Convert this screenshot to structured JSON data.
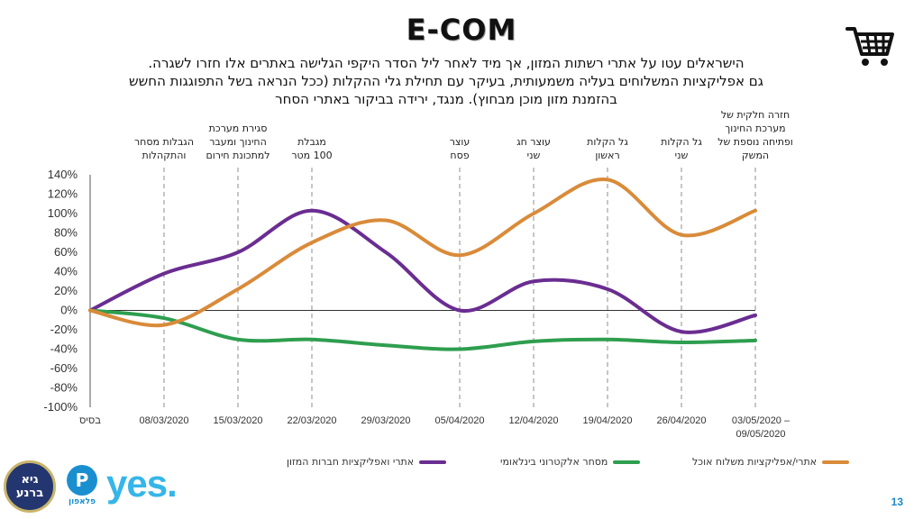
{
  "title": "E-COM",
  "subtitle": [
    "הישראלים עטו על אתרי רשתות המזון, אך מיד לאחר ליל הסדר היקפי הגלישה באתרים אלו חזרו לשגרה.",
    "גם אפליקציות המשלוחים בעליה משמעותית, בעיקר עם תחילת גלי ההקלות (ככל הנראה בשל התפוגגות החשש",
    "בהזמנת מזון מוכן מבחוץ). מנגד, ירידה בביקור באתרי הסחר"
  ],
  "page_number": "13",
  "icons": {
    "cart": "shopping-cart-icon"
  },
  "logos": {
    "logo1_text": "גיא ברנע",
    "logo2_mark": "P",
    "logo2_text": "פלאפון",
    "logo3_text": "yes."
  },
  "colors": {
    "purple": "#6a2d91",
    "green": "#2e9e4f",
    "orange": "#d98b3a",
    "grid_dash": "#8c8c8c",
    "axis": "#555555"
  },
  "chart_data": {
    "type": "line",
    "categories": [
      "בסיס",
      "08/03/2020",
      "15/03/2020",
      "22/03/2020",
      "29/03/2020",
      "05/04/2020",
      "12/04/2020",
      "19/04/2020",
      "26/04/2020",
      "03/05/2020 – 09/05/2020"
    ],
    "series": [
      {
        "name": "אתרי ואפליקציות חברות המזון",
        "color": "#6a2d91",
        "values": [
          0,
          38,
          60,
          103,
          60,
          0,
          30,
          22,
          -22,
          -5
        ]
      },
      {
        "name": "מסחר אלקטרוני בינלאומי",
        "color": "#2e9e4f",
        "values": [
          0,
          -8,
          -30,
          -30,
          -36,
          -40,
          -32,
          -30,
          -33,
          -31
        ]
      },
      {
        "name": "אתרי/אפליקציות משלוח אוכל",
        "color": "#d98b3a",
        "values": [
          0,
          -15,
          22,
          70,
          93,
          57,
          100,
          135,
          78,
          103
        ]
      }
    ],
    "ylim": [
      -100,
      140
    ],
    "yticks": [
      140,
      120,
      100,
      80,
      60,
      40,
      20,
      0,
      -20,
      -40,
      -60,
      -80,
      -100
    ],
    "ytick_labels": [
      "140%",
      "120%",
      "100%",
      "80%",
      "60%",
      "40%",
      "20%",
      "0%",
      "-20%",
      "-40%",
      "-60%",
      "-80%",
      "-100%"
    ],
    "events": [
      {
        "index": 1,
        "label": [
          "הגבלות מסחר",
          "והתקהלות"
        ]
      },
      {
        "index": 2,
        "label": [
          "סגירת מערכת",
          "החינוך ומעבר",
          "למתכונת חירום"
        ]
      },
      {
        "index": 3,
        "label": [
          "מגבלת",
          "100 מטר"
        ]
      },
      {
        "index": 5,
        "label": [
          "עוצר",
          "פסח"
        ]
      },
      {
        "index": 6,
        "label": [
          "עוצר חג",
          "שני"
        ]
      },
      {
        "index": 7,
        "label": [
          "גל הקלות",
          "ראשון"
        ]
      },
      {
        "index": 8,
        "label": [
          "גל הקלות",
          "שני"
        ]
      },
      {
        "index": 9,
        "label": [
          "חזרה חלקית של",
          "מערכת החינוך",
          "ופתיחה נוספת של",
          "המשק"
        ]
      }
    ],
    "legend_position": "bottom",
    "grid": false
  }
}
